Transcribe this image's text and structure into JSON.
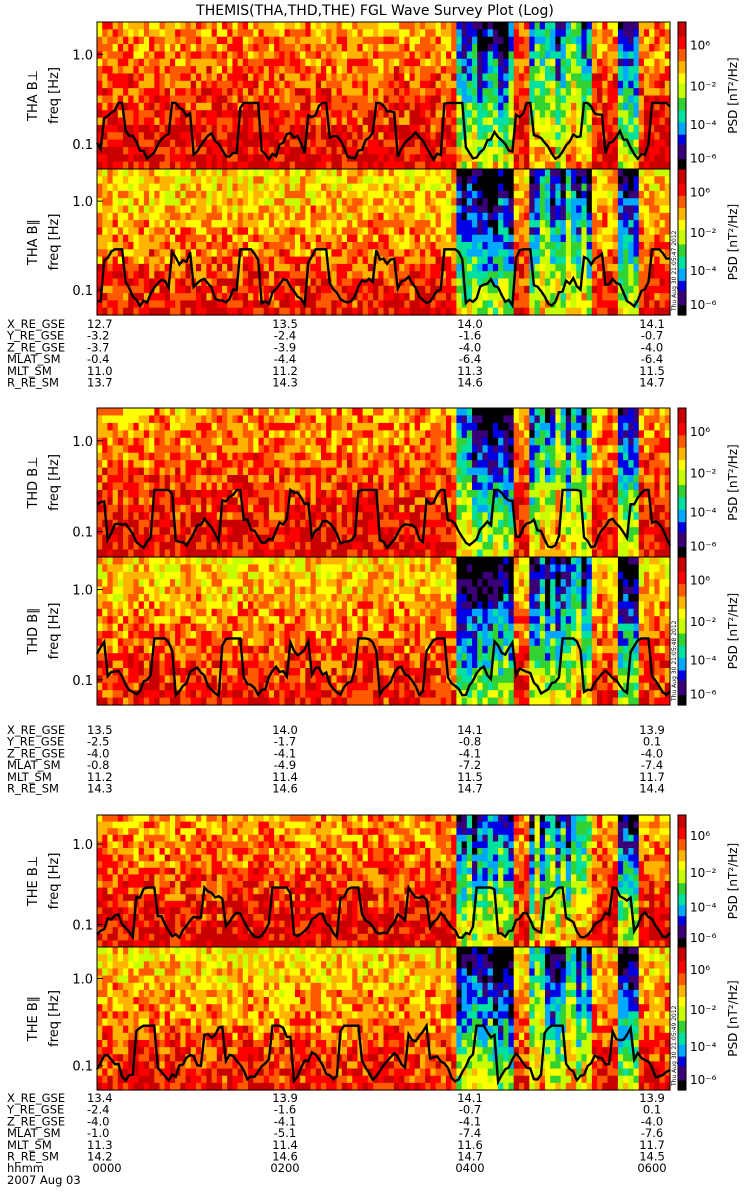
{
  "title": "THEMIS(THA,THD,THE) FGL Wave Survey Plot (Log)",
  "date_label": "2007 Aug 03",
  "time_axis": {
    "label": "hhmm",
    "ticks": [
      "0000",
      "0200",
      "0400",
      "0600"
    ]
  },
  "colorbar": {
    "label": "PSD [nT²/Hz]",
    "ticks": [
      "10⁶",
      "10⁻²",
      "10⁻⁴",
      "10⁻⁶"
    ],
    "colors": [
      "#000000",
      "#3a0078",
      "#0000e6",
      "#00a8ff",
      "#00e0a0",
      "#32d232",
      "#c8ff00",
      "#ffff00",
      "#ffb400",
      "#ff5a00",
      "#ff0000",
      "#c80000"
    ]
  },
  "stamps": [
    "Thu Aug 30 21:05:47 2012",
    "Thu Aug 30 21:05:48 2012",
    "Thu Aug 30 21:05:49 2012"
  ],
  "chart_data": [
    {
      "type": "heatmap",
      "probe": "THA",
      "panels": [
        {
          "ylabel": "THA B⊥",
          "yaxis_label": "freq [Hz]",
          "yticks": [
            "1.0",
            "0.1"
          ],
          "yscale": "log"
        },
        {
          "ylabel": "THA B∥",
          "yaxis_label": "freq [Hz]",
          "yticks": [
            "1.0",
            "0.1"
          ],
          "yscale": "log"
        }
      ],
      "ephemeris": {
        "labels": [
          "X_RE_GSE",
          "Y_RE_GSE",
          "Z_RE_GSE",
          "MLAT_SM",
          "MLT_SM",
          "R_RE_SM"
        ],
        "rows": [
          [
            "12.7",
            "13.5",
            "14.0",
            "14.1"
          ],
          [
            "-3.2",
            "-2.4",
            "-1.6",
            "-0.7"
          ],
          [
            "-3.7",
            "-3.9",
            "-4.0",
            "-4.0"
          ],
          [
            "-0.4",
            "-4.4",
            "-6.4",
            "-6.4"
          ],
          [
            "11.0",
            "11.2",
            "11.3",
            "11.5"
          ],
          [
            "13.7",
            "14.3",
            "14.6",
            "14.7"
          ]
        ]
      }
    },
    {
      "type": "heatmap",
      "probe": "THD",
      "panels": [
        {
          "ylabel": "THD B⊥",
          "yaxis_label": "freq [Hz]",
          "yticks": [
            "1.0",
            "0.1"
          ],
          "yscale": "log"
        },
        {
          "ylabel": "THD B∥",
          "yaxis_label": "freq [Hz]",
          "yticks": [
            "1.0",
            "0.1"
          ],
          "yscale": "log"
        }
      ],
      "ephemeris": {
        "labels": [
          "X_RE_GSE",
          "Y_RE_GSE",
          "Z_RE_GSE",
          "MLAT_SM",
          "MLT_SM",
          "R_RE_SM"
        ],
        "rows": [
          [
            "13.5",
            "14.0",
            "14.1",
            "13.9"
          ],
          [
            "-2.5",
            "-1.7",
            "-0.8",
            "0.1"
          ],
          [
            "-4.0",
            "-4.1",
            "-4.1",
            "-4.0"
          ],
          [
            "-0.8",
            "-4.9",
            "-7.2",
            "-7.4"
          ],
          [
            "11.2",
            "11.4",
            "11.5",
            "11.7"
          ],
          [
            "14.3",
            "14.6",
            "14.7",
            "14.4"
          ]
        ]
      }
    },
    {
      "type": "heatmap",
      "probe": "THE",
      "panels": [
        {
          "ylabel": "THE B⊥",
          "yaxis_label": "freq [Hz]",
          "yticks": [
            "1.0",
            "0.1"
          ],
          "yscale": "log"
        },
        {
          "ylabel": "THE B∥",
          "yaxis_label": "freq [Hz]",
          "yticks": [
            "1.0",
            "0.1"
          ],
          "yscale": "log"
        }
      ],
      "ephemeris": {
        "labels": [
          "X_RE_GSE",
          "Y_RE_GSE",
          "Z_RE_GSE",
          "MLAT_SM",
          "MLT_SM",
          "R_RE_SM"
        ],
        "rows": [
          [
            "13.4",
            "13.9",
            "14.1",
            "13.9"
          ],
          [
            "-2.4",
            "-1.6",
            "-0.7",
            "0.1"
          ],
          [
            "-4.0",
            "-4.1",
            "-4.1",
            "-4.0"
          ],
          [
            "-1.0",
            "-5.1",
            "-7.4",
            "-7.6"
          ],
          [
            "11.3",
            "11.4",
            "11.6",
            "11.7"
          ],
          [
            "14.2",
            "14.6",
            "14.7",
            "14.5"
          ]
        ]
      }
    }
  ]
}
